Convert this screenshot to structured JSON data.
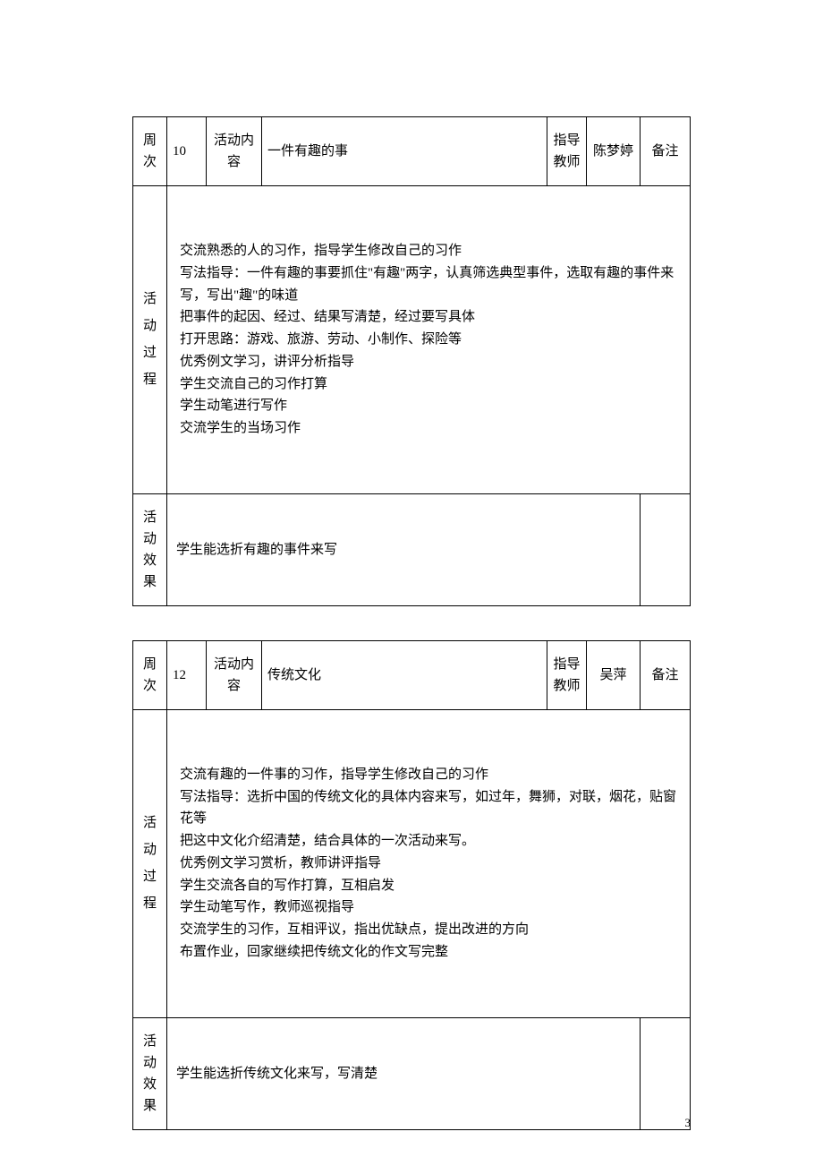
{
  "table1": {
    "header": {
      "week_label": "周次",
      "week_value": "10",
      "content_label": "活动内容",
      "content_value": "一件有趣的事",
      "teacher_label": "指导教师",
      "teacher_value": "陈梦婷",
      "remark_label": "备注"
    },
    "process": {
      "label": "活动过程",
      "lines": [
        "交流熟悉的人的习作，指导学生修改自己的习作",
        "写法指导：一件有趣的事要抓住\"有趣\"两字，认真筛选典型事件，选取有趣的事件来写，写出\"趣\"的味道",
        "把事件的起因、经过、结果写清楚，经过要写具体",
        "打开思路：游戏、旅游、劳动、小制作、探险等",
        "优秀例文学习，讲评分析指导",
        "学生交流自己的习作打算",
        "学生动笔进行写作",
        "交流学生的当场习作"
      ]
    },
    "effect": {
      "label": "活动效果",
      "value": "学生能选折有趣的事件来写"
    }
  },
  "table2": {
    "header": {
      "week_label": "周次",
      "week_value": "12",
      "content_label": "活动内容",
      "content_value": "传统文化",
      "teacher_label": "指导教师",
      "teacher_value": "吴萍",
      "remark_label": "备注"
    },
    "process": {
      "label": "活动过程",
      "lines": [
        "交流有趣的一件事的习作，指导学生修改自己的习作",
        "写法指导：选折中国的传统文化的具体内容来写，如过年，舞狮，对联，烟花，贴窗花等",
        "把这中文化介绍清楚，结合具体的一次活动来写。",
        "优秀例文学习赏析，教师讲评指导",
        "学生交流各自的写作打算，互相启发",
        "学生动笔写作，教师巡视指导",
        "交流学生的习作，互相评议，指出优缺点，提出改进的方向",
        "布置作业，回家继续把传统文化的作文写完整"
      ]
    },
    "effect": {
      "label": "活动效果",
      "value": "学生能选折传统文化来写，写清楚"
    }
  },
  "page_number": "3"
}
